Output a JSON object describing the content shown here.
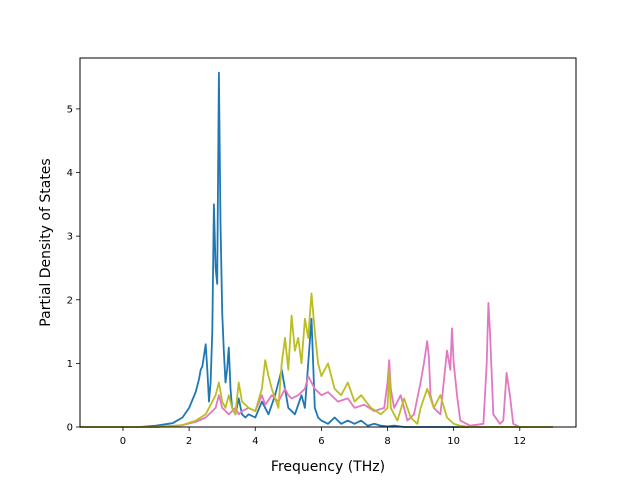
{
  "chart_data": {
    "type": "line",
    "title": "",
    "xlabel": "Frequency (THz)",
    "ylabel": "Partial Density of States",
    "xlim": [
      -1.3,
      13.7
    ],
    "ylim": [
      0,
      5.8
    ],
    "xticks": [
      0,
      2,
      4,
      6,
      8,
      10,
      12
    ],
    "yticks": [
      0,
      1,
      2,
      3,
      4,
      5
    ],
    "grid": false,
    "legend": "none",
    "series": [
      {
        "color": "#1f77b4",
        "x": [
          -1.3,
          0.5,
          1.0,
          1.5,
          1.8,
          2.0,
          2.2,
          2.3,
          2.35,
          2.4,
          2.5,
          2.55,
          2.6,
          2.65,
          2.7,
          2.75,
          2.8,
          2.85,
          2.9,
          2.95,
          3.0,
          3.05,
          3.1,
          3.15,
          3.2,
          3.25,
          3.3,
          3.4,
          3.5,
          3.6,
          3.7,
          3.8,
          4.0,
          4.2,
          4.4,
          4.6,
          4.8,
          5.0,
          5.2,
          5.4,
          5.5,
          5.6,
          5.7,
          5.8,
          5.9,
          6.0,
          6.2,
          6.4,
          6.6,
          6.8,
          7.0,
          7.2,
          7.4,
          7.6,
          7.8,
          8.0,
          8.2,
          8.5,
          9.0,
          13.0
        ],
        "y": [
          0,
          0,
          0.02,
          0.06,
          0.15,
          0.3,
          0.55,
          0.75,
          0.9,
          0.95,
          1.3,
          0.9,
          0.4,
          0.7,
          1.5,
          3.5,
          2.5,
          2.25,
          5.57,
          3.2,
          1.8,
          1.2,
          0.7,
          0.9,
          1.25,
          0.6,
          0.3,
          0.2,
          0.45,
          0.2,
          0.15,
          0.2,
          0.15,
          0.4,
          0.2,
          0.5,
          0.9,
          0.3,
          0.2,
          0.5,
          0.3,
          1.0,
          1.7,
          0.3,
          0.15,
          0.1,
          0.05,
          0.15,
          0.05,
          0.1,
          0.05,
          0.1,
          0.02,
          0.05,
          0.02,
          0.01,
          0.02,
          0,
          0,
          0
        ]
      },
      {
        "color": "#e377c2",
        "x": [
          -1.3,
          1.0,
          1.8,
          2.2,
          2.5,
          2.8,
          2.9,
          3.0,
          3.2,
          3.4,
          3.5,
          3.6,
          3.8,
          4.0,
          4.2,
          4.3,
          4.5,
          4.7,
          4.9,
          5.0,
          5.1,
          5.3,
          5.5,
          5.6,
          5.7,
          5.8,
          6.0,
          6.2,
          6.5,
          6.8,
          7.0,
          7.3,
          7.6,
          7.9,
          8.0,
          8.05,
          8.1,
          8.2,
          8.4,
          8.5,
          8.6,
          8.8,
          9.0,
          9.1,
          9.2,
          9.25,
          9.3,
          9.4,
          9.6,
          9.8,
          9.9,
          9.95,
          10.0,
          10.1,
          10.2,
          10.5,
          10.9,
          11.0,
          11.05,
          11.1,
          11.2,
          11.4,
          11.5,
          11.6,
          11.7,
          11.8,
          12.0,
          13.0
        ],
        "y": [
          0,
          0,
          0.03,
          0.08,
          0.15,
          0.3,
          0.5,
          0.3,
          0.2,
          0.3,
          0.2,
          0.25,
          0.3,
          0.25,
          0.5,
          0.35,
          0.5,
          0.4,
          0.6,
          0.5,
          0.45,
          0.5,
          0.6,
          0.8,
          0.7,
          0.6,
          0.5,
          0.55,
          0.4,
          0.45,
          0.3,
          0.35,
          0.25,
          0.3,
          0.7,
          1.05,
          0.6,
          0.3,
          0.5,
          0.3,
          0.1,
          0.2,
          0.7,
          1.0,
          1.35,
          1.1,
          0.5,
          0.3,
          0.2,
          1.2,
          0.9,
          1.55,
          1.0,
          0.5,
          0.1,
          0.02,
          0.05,
          1.0,
          1.95,
          1.5,
          0.2,
          0.05,
          0.1,
          0.85,
          0.5,
          0.05,
          0,
          0
        ]
      },
      {
        "color": "#bcbd22",
        "x": [
          -1.3,
          1.0,
          1.8,
          2.2,
          2.5,
          2.7,
          2.8,
          2.9,
          3.0,
          3.1,
          3.2,
          3.3,
          3.4,
          3.5,
          3.6,
          3.8,
          4.0,
          4.2,
          4.3,
          4.4,
          4.5,
          4.7,
          4.8,
          4.9,
          5.0,
          5.1,
          5.2,
          5.3,
          5.4,
          5.5,
          5.6,
          5.7,
          5.8,
          5.9,
          6.0,
          6.2,
          6.4,
          6.6,
          6.8,
          7.0,
          7.2,
          7.5,
          7.8,
          8.0,
          8.05,
          8.1,
          8.3,
          8.5,
          8.7,
          8.9,
          9.0,
          9.2,
          9.4,
          9.6,
          9.8,
          10.0,
          10.2,
          10.5,
          11.0,
          13.0
        ],
        "y": [
          0,
          0,
          0.03,
          0.1,
          0.2,
          0.4,
          0.5,
          0.7,
          0.4,
          0.3,
          0.5,
          0.3,
          0.2,
          0.7,
          0.4,
          0.3,
          0.25,
          0.6,
          1.05,
          0.8,
          0.6,
          0.3,
          1.0,
          1.4,
          0.9,
          1.75,
          1.2,
          1.4,
          1.0,
          1.7,
          1.4,
          2.1,
          1.5,
          1.0,
          0.8,
          1.0,
          0.6,
          0.5,
          0.7,
          0.4,
          0.5,
          0.3,
          0.2,
          0.3,
          0.9,
          0.3,
          0.1,
          0.45,
          0.15,
          0.05,
          0.3,
          0.6,
          0.3,
          0.5,
          0.15,
          0.05,
          0.02,
          0,
          0,
          0
        ]
      }
    ]
  }
}
